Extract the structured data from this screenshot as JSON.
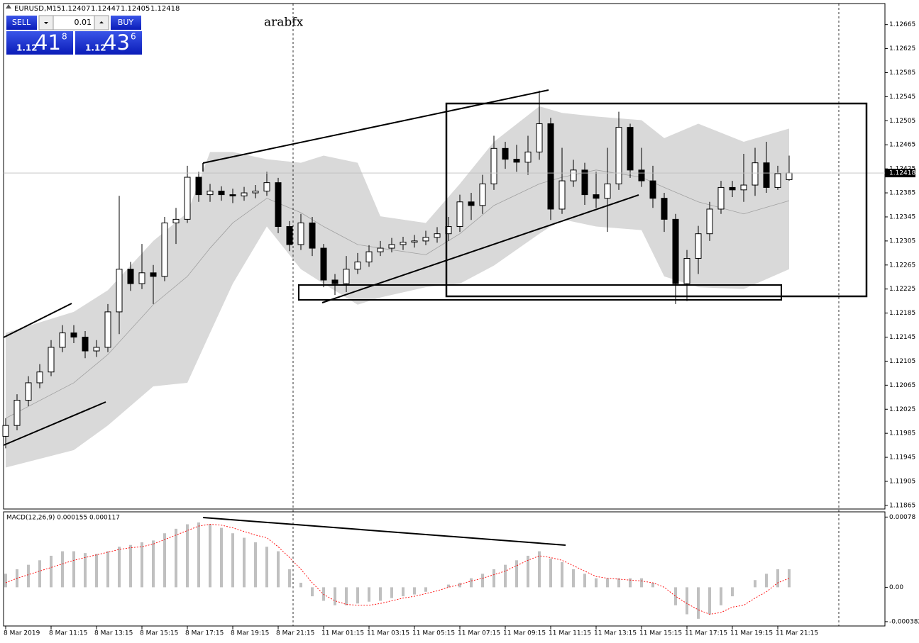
{
  "header": {
    "symbol": "EURUSD,M15"
  },
  "trade_panel": {
    "sell": "SELL",
    "lot": "0.01",
    "buy": "BUY",
    "bid_prefix": "1.12",
    "bid_big": "41",
    "bid_small": "8",
    "ask_prefix": "1.12",
    "ask_big": "43",
    "ask_small": "6"
  },
  "chart_data": [
    {
      "type": "candlestick",
      "annotation": "arabfx",
      "open": [
        1.1198,
        1.11998,
        1.1204,
        1.12069,
        1.12087,
        1.12128,
        1.12152,
        1.12145,
        1.12122,
        1.12128,
        1.12187,
        1.12258,
        1.12234,
        1.12252,
        1.12246,
        1.12335,
        1.12341,
        1.12411,
        1.12382,
        1.12388,
        1.12382,
        1.1238,
        1.12385,
        1.12388,
        1.12402,
        1.12329,
        1.12299,
        1.12335,
        1.12293,
        1.1224,
        1.12234,
        1.12258,
        1.1227,
        1.12287,
        1.12293,
        1.12299,
        1.12303,
        1.12305,
        1.12311,
        1.12317,
        1.12329,
        1.1237,
        1.12364,
        1.124,
        1.12459,
        1.12441,
        1.12436,
        1.12453,
        1.125,
        1.12358,
        1.12405,
        1.12423,
        1.12382,
        1.12376,
        1.124,
        1.12494,
        1.12423,
        1.12405,
        1.12376,
        1.12341,
        1.12234,
        1.12276,
        1.12317,
        1.12358,
        1.12394,
        1.1239,
        1.12398,
        1.12435,
        1.12394,
        1.12407
      ],
      "high": [
        1.1201,
        1.1205,
        1.1208,
        1.121,
        1.1214,
        1.12165,
        1.12165,
        1.12155,
        1.1214,
        1.122,
        1.1238,
        1.1227,
        1.123,
        1.12265,
        1.12345,
        1.1236,
        1.1243,
        1.1242,
        1.124,
        1.12396,
        1.12392,
        1.12395,
        1.12398,
        1.1242,
        1.1241,
        1.12338,
        1.1235,
        1.12345,
        1.123,
        1.1225,
        1.1228,
        1.12285,
        1.12298,
        1.12305,
        1.1231,
        1.12312,
        1.12315,
        1.12322,
        1.12328,
        1.12345,
        1.12382,
        1.12385,
        1.12415,
        1.1248,
        1.1247,
        1.12465,
        1.1248,
        1.12555,
        1.1251,
        1.1246,
        1.1244,
        1.12435,
        1.1242,
        1.1246,
        1.1252,
        1.125,
        1.1246,
        1.1243,
        1.12385,
        1.1235,
        1.1229,
        1.1233,
        1.1237,
        1.12405,
        1.12405,
        1.1245,
        1.1246,
        1.1247,
        1.1243,
        1.12447
      ],
      "low": [
        1.1196,
        1.1199,
        1.1203,
        1.1206,
        1.1208,
        1.1212,
        1.12135,
        1.1211,
        1.12112,
        1.1212,
        1.1215,
        1.12222,
        1.12225,
        1.122,
        1.12238,
        1.123,
        1.12335,
        1.1237,
        1.1237,
        1.12372,
        1.12368,
        1.12372,
        1.12376,
        1.1238,
        1.12318,
        1.12288,
        1.1229,
        1.1228,
        1.12228,
        1.12215,
        1.1222,
        1.1225,
        1.12262,
        1.1228,
        1.12286,
        1.1229,
        1.12294,
        1.12298,
        1.12302,
        1.12305,
        1.1232,
        1.1234,
        1.1235,
        1.1239,
        1.12425,
        1.1242,
        1.12415,
        1.1244,
        1.1234,
        1.1235,
        1.12395,
        1.12365,
        1.1236,
        1.1232,
        1.1239,
        1.1241,
        1.12395,
        1.1236,
        1.1232,
        1.122,
        1.12205,
        1.1225,
        1.12305,
        1.1235,
        1.12378,
        1.1237,
        1.1238,
        1.12385,
        1.1239,
        1.12405
      ],
      "close": [
        1.11998,
        1.1204,
        1.12069,
        1.12087,
        1.12128,
        1.12152,
        1.12145,
        1.12122,
        1.12128,
        1.12187,
        1.12258,
        1.12234,
        1.12252,
        1.12246,
        1.12335,
        1.12341,
        1.12411,
        1.12382,
        1.12388,
        1.12382,
        1.1238,
        1.12385,
        1.12388,
        1.12402,
        1.12329,
        1.12299,
        1.12335,
        1.12293,
        1.1224,
        1.12234,
        1.12258,
        1.1227,
        1.12287,
        1.12293,
        1.12299,
        1.12303,
        1.12305,
        1.12311,
        1.12317,
        1.12329,
        1.1237,
        1.12364,
        1.124,
        1.12459,
        1.12441,
        1.12436,
        1.12453,
        1.125,
        1.12358,
        1.12405,
        1.12423,
        1.12382,
        1.12376,
        1.124,
        1.12494,
        1.12423,
        1.12405,
        1.12376,
        1.12341,
        1.12234,
        1.12276,
        1.12317,
        1.12358,
        1.12394,
        1.1239,
        1.12398,
        1.12435,
        1.12394,
        1.12417,
        1.12418
      ],
      "bands": {
        "x": [
          0,
          6,
          9,
          13,
          16,
          18,
          20,
          23,
          26,
          28,
          31,
          33,
          37,
          40,
          43,
          47,
          49,
          52,
          56,
          58,
          61,
          65,
          69
        ],
        "upper": [
          1.12152,
          1.12187,
          1.12223,
          1.12305,
          1.12352,
          1.12453,
          1.12453,
          1.12441,
          1.12435,
          1.12447,
          1.12435,
          1.12346,
          1.12335,
          1.124,
          1.1247,
          1.12529,
          1.12518,
          1.12512,
          1.12506,
          1.12476,
          1.125,
          1.1247,
          1.12492
        ],
        "lower": [
          1.11928,
          1.11957,
          1.11998,
          1.12063,
          1.12069,
          1.12152,
          1.12234,
          1.12329,
          1.12258,
          1.12234,
          1.12199,
          1.12211,
          1.12228,
          1.12234,
          1.12264,
          1.12317,
          1.12341,
          1.12329,
          1.12323,
          1.12246,
          1.12228,
          1.12225,
          1.12258
        ],
        "middle": [
          1.1201,
          1.12069,
          1.12116,
          1.12199,
          1.12246,
          1.12293,
          1.12335,
          1.12376,
          1.12352,
          1.12329,
          1.12299,
          1.12293,
          1.12282,
          1.12317,
          1.12364,
          1.124,
          1.12411,
          1.12423,
          1.12411,
          1.12394,
          1.1237,
          1.1235,
          1.12372
        ]
      },
      "bull_color": "#ffffff",
      "bear_color": "#000000",
      "band_color": "#d9d9d9",
      "ma_color": "#a0a0a0",
      "ylim": [
        1.11859,
        1.127
      ],
      "yticks": [
        1.12665,
        1.12625,
        1.12585,
        1.12545,
        1.12505,
        1.12465,
        1.12425,
        1.12385,
        1.12345,
        1.12305,
        1.12265,
        1.12225,
        1.12185,
        1.12145,
        1.12105,
        1.12065,
        1.12025,
        1.11985,
        1.11945,
        1.11905,
        1.11865
      ],
      "xticks": [
        {
          "value": 0,
          "label": "8 Mar 2019"
        },
        {
          "value": 4,
          "label": "8 Mar 11:15"
        },
        {
          "value": 8,
          "label": "8 Mar 13:15"
        },
        {
          "value": 12,
          "label": "8 Mar 15:15"
        },
        {
          "value": 16,
          "label": "8 Mar 17:15"
        },
        {
          "value": 20,
          "label": "8 Mar 19:15"
        },
        {
          "value": 24,
          "label": "8 Mar 21:15"
        },
        {
          "value": 28,
          "label": "11 Mar 01:15"
        },
        {
          "value": 32,
          "label": "11 Mar 03:15"
        },
        {
          "value": 36,
          "label": "11 Mar 05:15"
        },
        {
          "value": 40,
          "label": "11 Mar 07:15"
        },
        {
          "value": 44,
          "label": "11 Mar 09:15"
        },
        {
          "value": 48,
          "label": "11 Mar 11:15"
        },
        {
          "value": 52,
          "label": "11 Mar 13:15"
        },
        {
          "value": 56,
          "label": "11 Mar 15:15"
        },
        {
          "value": 60,
          "label": "11 Mar 17:15"
        },
        {
          "value": 64,
          "label": "11 Mar 19:15"
        },
        {
          "value": 68,
          "label": "11 Mar 21:15"
        }
      ]
    },
    {
      "type": "macd",
      "title": "MACD(12,26,9) 0.000155 0.000117",
      "histogram": [
        0.00015,
        0.0002,
        0.00025,
        0.0003,
        0.00035,
        0.0004,
        0.0004,
        0.00038,
        0.00037,
        0.0004,
        0.00045,
        0.00047,
        0.0005,
        0.00052,
        0.0006,
        0.00065,
        0.0007,
        0.00072,
        0.0007,
        0.00066,
        0.0006,
        0.00055,
        0.0005,
        0.00045,
        0.0004,
        0.0002,
        5e-05,
        -0.0001,
        -0.00015,
        -0.0002,
        -0.0002,
        -0.00018,
        -0.00016,
        -0.00015,
        -0.00012,
        -0.0001,
        -8e-05,
        -5e-05,
        0,
        3e-05,
        5e-05,
        0.0001,
        0.00015,
        0.0002,
        0.00025,
        0.0003,
        0.00035,
        0.0004,
        0.00032,
        0.00028,
        0.0002,
        0.00015,
        0.0001,
        0.0001,
        0.0001,
        0.0001,
        0.0001,
        5e-05,
        0,
        -0.0002,
        -0.0003,
        -0.00035,
        -0.0003,
        -0.0002,
        -0.0001,
        0,
        8e-05,
        0.00015,
        0.0002,
        0.0002
      ],
      "signal": [
        5e-05,
        0.0001,
        0.00014,
        0.00018,
        0.00022,
        0.00026,
        0.0003,
        0.00033,
        0.00036,
        0.00039,
        0.00042,
        0.00044,
        0.00045,
        0.00048,
        0.00053,
        0.00058,
        0.00063,
        0.00068,
        0.0007,
        0.00069,
        0.00066,
        0.00062,
        0.00058,
        0.00055,
        0.00045,
        0.00033,
        0.0002,
        5e-05,
        -8e-05,
        -0.00015,
        -0.00019,
        -0.0002,
        -0.0002,
        -0.00018,
        -0.00015,
        -0.00012,
        -0.0001,
        -7e-05,
        -4e-05,
        0,
        3e-05,
        7e-05,
        0.0001,
        0.00014,
        0.00018,
        0.00024,
        0.0003,
        0.00035,
        0.00033,
        0.0003,
        0.00024,
        0.00018,
        0.00012,
        0.0001,
        9e-05,
        8e-05,
        7e-05,
        5e-05,
        0,
        -0.0001,
        -0.00018,
        -0.00025,
        -0.0003,
        -0.00028,
        -0.00022,
        -0.0002,
        -0.00012,
        -5e-05,
        5e-05,
        0.0001
      ],
      "hist_color": "#c0c0c0",
      "signal_color": "#ff0000",
      "ylim": [
        -0.00043,
        0.00083
      ],
      "yticks": [
        0.00078,
        {
          "value": 0,
          "label": "0.00"
        },
        -0.000382
      ]
    }
  ]
}
